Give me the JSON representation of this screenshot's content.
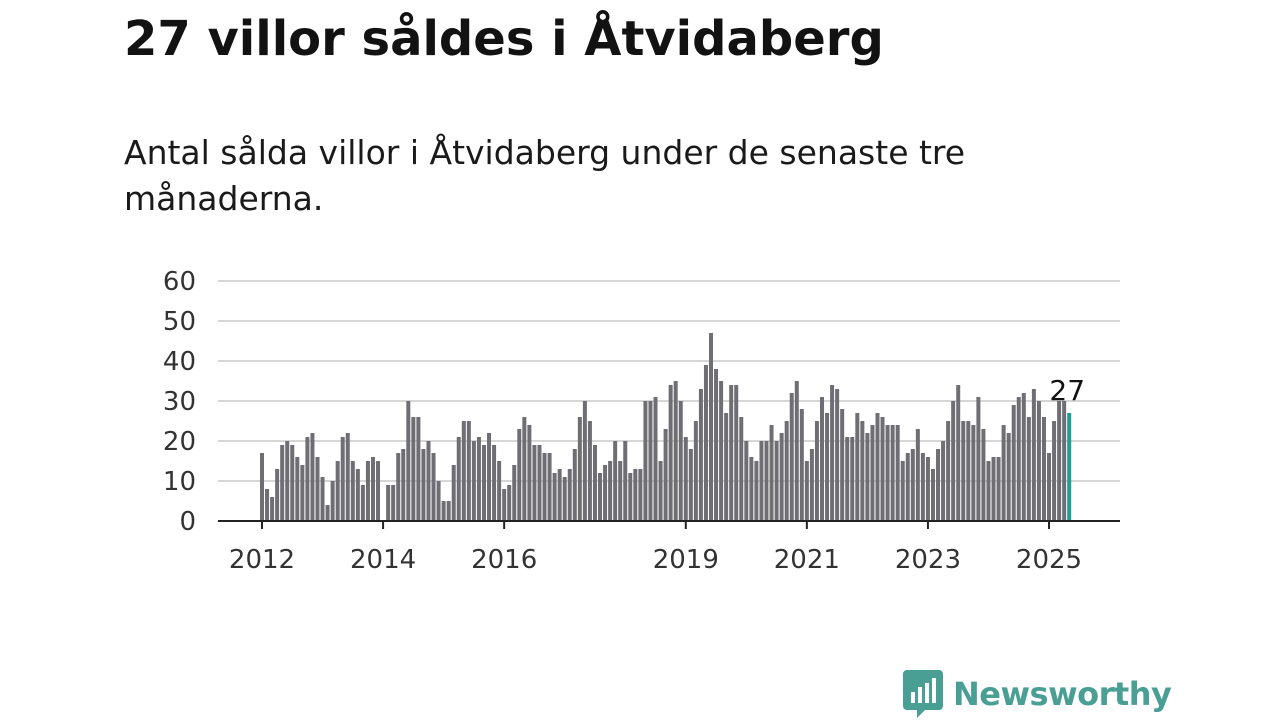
{
  "title": "27 villor såldes i Åtvidaberg",
  "subtitle": "Antal sålda villor i Åtvidaberg under de senaste tre månaderna.",
  "brand": {
    "name": "Newsworthy",
    "icon": "newsworthy-logo-icon",
    "color": "#4a9f95"
  },
  "chart_data": {
    "type": "bar",
    "x_start": "2012-01",
    "x_ticks": [
      "2012",
      "2014",
      "2016",
      "2019",
      "2021",
      "2023",
      "2025"
    ],
    "y_ticks": [
      "0",
      "10",
      "20",
      "30",
      "40",
      "50",
      "60"
    ],
    "ylim": [
      0,
      60
    ],
    "grid": true,
    "bar_color": "#6f6e75",
    "highlight_color": "#1f9e92",
    "highlight_label": "27",
    "values": [
      17,
      8,
      6,
      13,
      19,
      20,
      19,
      16,
      14,
      21,
      22,
      16,
      11,
      4,
      10,
      15,
      21,
      22,
      15,
      13,
      9,
      15,
      16,
      15,
      0,
      9,
      9,
      17,
      18,
      30,
      26,
      26,
      18,
      20,
      17,
      10,
      5,
      5,
      14,
      21,
      25,
      25,
      20,
      21,
      19,
      22,
      19,
      15,
      8,
      9,
      14,
      23,
      26,
      24,
      19,
      19,
      17,
      17,
      12,
      13,
      11,
      13,
      18,
      26,
      30,
      25,
      19,
      12,
      14,
      15,
      20,
      15,
      20,
      12,
      13,
      13,
      30,
      30,
      31,
      15,
      23,
      34,
      35,
      30,
      21,
      18,
      25,
      33,
      39,
      47,
      38,
      35,
      27,
      34,
      34,
      26,
      20,
      16,
      15,
      20,
      20,
      24,
      20,
      22,
      25,
      32,
      35,
      28,
      15,
      18,
      25,
      31,
      27,
      34,
      33,
      28,
      21,
      21,
      27,
      25,
      22,
      24,
      27,
      26,
      24,
      24,
      24,
      15,
      17,
      18,
      23,
      17,
      16,
      13,
      18,
      20,
      25,
      30,
      34,
      25,
      25,
      24,
      31,
      23,
      15,
      16,
      16,
      24,
      22,
      29,
      31,
      32,
      26,
      33,
      30,
      26,
      17,
      25,
      30,
      30,
      27
    ]
  }
}
